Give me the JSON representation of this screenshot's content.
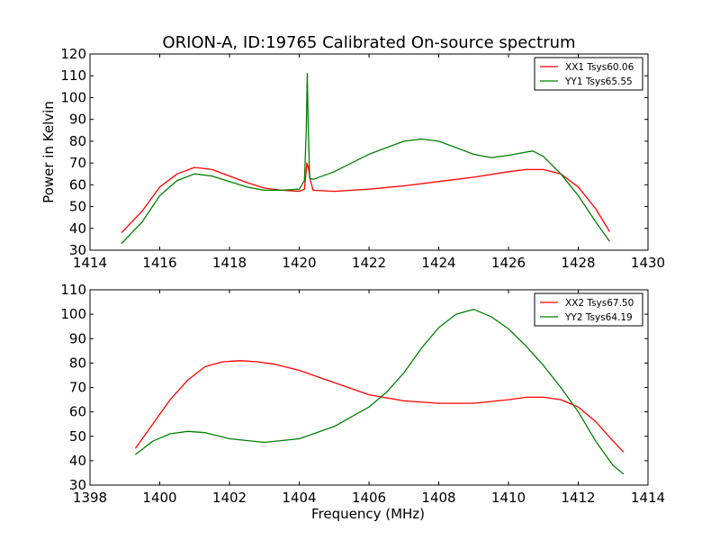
{
  "figure": {
    "title": "ORION-A, ID:19765 Calibrated On-source spectrum",
    "ylabel": "Power in Kelvin",
    "xlabel": "Frequency (MHz)"
  },
  "chart_data": [
    {
      "type": "line",
      "title": "ORION-A, ID:19765 Calibrated On-source spectrum",
      "xlabel": "",
      "ylabel": "Power in Kelvin",
      "xlim": [
        1414,
        1430
      ],
      "ylim": [
        30,
        120
      ],
      "xticks": [
        1414,
        1416,
        1418,
        1420,
        1422,
        1424,
        1426,
        1428,
        1430
      ],
      "yticks": [
        30,
        40,
        50,
        60,
        70,
        80,
        90,
        100,
        110,
        120
      ],
      "grid": false,
      "legend_position": "top-right",
      "series": [
        {
          "name": "XX1 Tsys60.06",
          "color": "#ff0000",
          "x": [
            1414.9,
            1415.5,
            1416.0,
            1416.5,
            1417.0,
            1417.5,
            1418.0,
            1418.5,
            1419.0,
            1419.5,
            1420.0,
            1420.15,
            1420.22,
            1420.26,
            1420.32,
            1420.4,
            1421.0,
            1422.0,
            1423.0,
            1424.0,
            1425.0,
            1426.0,
            1426.5,
            1427.0,
            1427.5,
            1428.0,
            1428.5,
            1428.9
          ],
          "y": [
            38,
            48,
            59,
            65,
            68,
            67,
            64,
            61,
            58.5,
            57.5,
            57,
            58,
            70,
            68,
            62,
            57.5,
            57,
            58,
            59.5,
            61.5,
            63.5,
            66,
            67,
            67,
            65,
            59,
            49,
            38.5
          ]
        },
        {
          "name": "YY1 Tsys65.55",
          "color": "#008000",
          "x": [
            1414.9,
            1415.5,
            1416.0,
            1416.5,
            1417.0,
            1417.5,
            1418.0,
            1418.5,
            1419.0,
            1419.5,
            1420.0,
            1420.15,
            1420.2,
            1420.23,
            1420.26,
            1420.3,
            1420.4,
            1421.0,
            1422.0,
            1423.0,
            1423.5,
            1424.0,
            1425.0,
            1425.5,
            1426.0,
            1426.5,
            1426.7,
            1427.0,
            1427.5,
            1428.0,
            1428.5,
            1428.9
          ],
          "y": [
            33,
            43,
            55,
            62,
            65,
            64,
            61.5,
            59,
            57.5,
            57.5,
            58,
            62,
            85,
            111,
            85,
            63,
            62.5,
            66,
            74,
            80,
            81,
            80,
            74,
            72.5,
            73.5,
            75,
            75.5,
            73,
            65,
            55,
            43,
            34
          ]
        }
      ]
    },
    {
      "type": "line",
      "title": "",
      "xlabel": "Frequency (MHz)",
      "ylabel": "",
      "xlim": [
        1398,
        1414
      ],
      "ylim": [
        30,
        110
      ],
      "xticks": [
        1398,
        1400,
        1402,
        1404,
        1406,
        1408,
        1410,
        1412,
        1414
      ],
      "yticks": [
        30,
        40,
        50,
        60,
        70,
        80,
        90,
        100,
        110
      ],
      "grid": false,
      "legend_position": "top-right",
      "series": [
        {
          "name": "XX2 Tsys67.50",
          "color": "#ff0000",
          "x": [
            1399.3,
            1399.8,
            1400.3,
            1400.8,
            1401.3,
            1401.8,
            1402.3,
            1402.8,
            1403.3,
            1404.0,
            1405.0,
            1406.0,
            1407.0,
            1408.0,
            1409.0,
            1410.0,
            1410.5,
            1411.0,
            1411.5,
            1412.0,
            1412.5,
            1413.0,
            1413.3
          ],
          "y": [
            45,
            55,
            65,
            73,
            78.5,
            80.5,
            81,
            80.5,
            79.5,
            77,
            72,
            67,
            64.5,
            63.5,
            63.5,
            65,
            66,
            66,
            65,
            62,
            56,
            48,
            43.5
          ]
        },
        {
          "name": "YY2 Tsys64.19",
          "color": "#008000",
          "x": [
            1399.3,
            1399.8,
            1400.3,
            1400.8,
            1401.3,
            1402.0,
            1403.0,
            1404.0,
            1405.0,
            1406.0,
            1406.5,
            1407.0,
            1407.5,
            1408.0,
            1408.5,
            1409.0,
            1409.5,
            1410.0,
            1410.5,
            1411.0,
            1411.5,
            1412.0,
            1412.5,
            1413.0,
            1413.3
          ],
          "y": [
            42.5,
            48,
            51,
            52,
            51.5,
            49,
            47.5,
            49,
            54,
            62,
            68,
            76,
            86,
            94.5,
            100,
            102,
            99,
            94,
            87,
            79,
            70,
            60,
            48,
            38,
            34.5
          ]
        }
      ]
    }
  ]
}
